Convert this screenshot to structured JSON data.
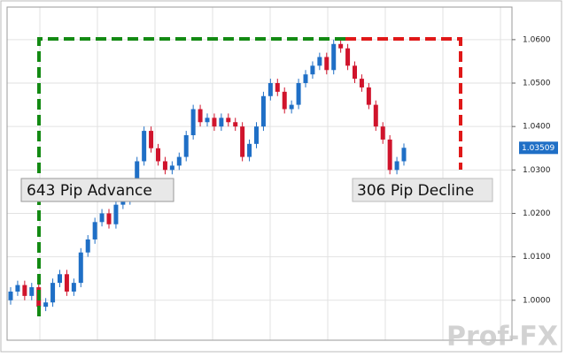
{
  "chart_data": {
    "type": "candlestick",
    "open": [
      1.0,
      1.002,
      1.0035,
      1.001,
      1.003,
      0.9985,
      0.9995,
      1.004,
      1.006,
      1.002,
      1.004,
      1.011,
      1.014,
      1.018,
      1.02,
      1.0175,
      1.022,
      1.023,
      1.024,
      1.032,
      1.039,
      1.035,
      1.032,
      1.03,
      1.031,
      1.033,
      1.038,
      1.044,
      1.041,
      1.042,
      1.04,
      1.042,
      1.041,
      1.04,
      1.033,
      1.036,
      1.04,
      1.047,
      1.05,
      1.048,
      1.044,
      1.045,
      1.05,
      1.052,
      1.054,
      1.056,
      1.053,
      1.059,
      1.058,
      1.054,
      1.051,
      1.049,
      1.045,
      1.04,
      1.037,
      1.03,
      1.032
    ],
    "high": [
      1.003,
      1.0045,
      1.0045,
      1.004,
      1.004,
      1.0005,
      1.005,
      1.007,
      1.007,
      1.005,
      1.012,
      1.015,
      1.019,
      1.021,
      1.021,
      1.023,
      1.024,
      1.025,
      1.033,
      1.04,
      1.04,
      1.036,
      1.033,
      1.032,
      1.034,
      1.039,
      1.045,
      1.045,
      1.043,
      1.043,
      1.043,
      1.043,
      1.042,
      1.041,
      1.037,
      1.041,
      1.048,
      1.051,
      1.051,
      1.049,
      1.046,
      1.051,
      1.053,
      1.055,
      1.057,
      1.057,
      1.06,
      1.06,
      1.059,
      1.055,
      1.052,
      1.05,
      1.046,
      1.041,
      1.038,
      1.033,
      1.0361
    ],
    "low": [
      0.999,
      1.001,
      1.0,
      1.0,
      0.9975,
      0.9975,
      0.9985,
      1.003,
      1.001,
      1.001,
      1.003,
      1.01,
      1.013,
      1.017,
      1.0165,
      1.0165,
      1.021,
      1.022,
      1.023,
      1.031,
      1.034,
      1.031,
      1.029,
      1.029,
      1.03,
      1.032,
      1.037,
      1.04,
      1.04,
      1.039,
      1.039,
      1.04,
      1.039,
      1.032,
      1.032,
      1.035,
      1.039,
      1.046,
      1.047,
      1.043,
      1.043,
      1.044,
      1.049,
      1.051,
      1.053,
      1.052,
      1.052,
      1.057,
      1.053,
      1.05,
      1.048,
      1.044,
      1.039,
      1.036,
      1.029,
      1.029,
      1.031
    ],
    "close": [
      1.002,
      1.0035,
      1.001,
      1.003,
      0.9985,
      0.9995,
      1.004,
      1.006,
      1.002,
      1.004,
      1.011,
      1.014,
      1.018,
      1.02,
      1.0175,
      1.022,
      1.023,
      1.024,
      1.032,
      1.039,
      1.035,
      1.032,
      1.03,
      1.031,
      1.033,
      1.038,
      1.044,
      1.041,
      1.042,
      1.04,
      1.042,
      1.041,
      1.04,
      1.033,
      1.036,
      1.04,
      1.047,
      1.05,
      1.048,
      1.044,
      1.045,
      1.05,
      1.052,
      1.054,
      1.056,
      1.053,
      1.059,
      1.058,
      1.054,
      1.051,
      1.049,
      1.045,
      1.04,
      1.037,
      1.03,
      1.032,
      1.0351
    ],
    "up_color": "#1f6fc6",
    "down_color": "#d0142c",
    "ylim": [
      0.9908,
      1.0675
    ],
    "yticks": [
      {
        "value": 1.0,
        "label": "1.0000"
      },
      {
        "value": 1.01,
        "label": "1.0100"
      },
      {
        "value": 1.02,
        "label": "1.0200"
      },
      {
        "value": 1.03,
        "label": "1.0300"
      },
      {
        "value": 1.04,
        "label": "1.0400"
      },
      {
        "value": 1.05,
        "label": "1.0500"
      },
      {
        "value": 1.06,
        "label": "1.0600"
      }
    ],
    "grid": true,
    "last_price": {
      "value": 1.03509,
      "label": "1.03509"
    },
    "annotations": [
      "643 Pip Advance",
      "306 Pip Decline"
    ],
    "watermark": "Prof-FX"
  }
}
